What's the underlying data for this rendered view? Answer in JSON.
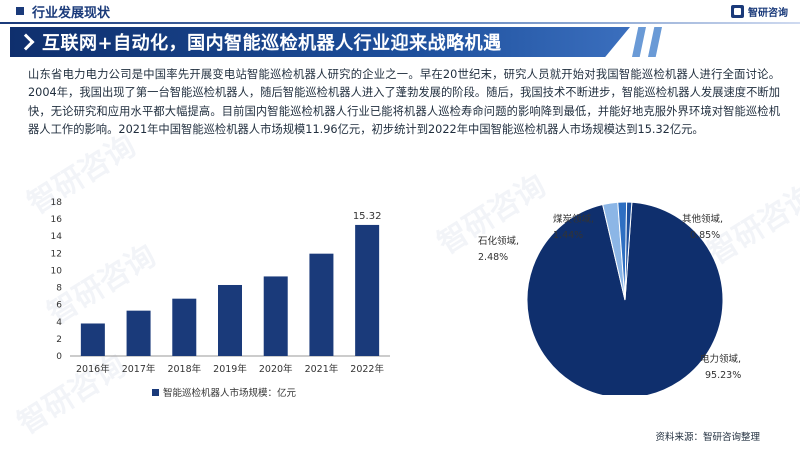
{
  "header": {
    "section_title": "行业发展现状",
    "brand_name": "智研咨询"
  },
  "banner": {
    "title": "互联网+自动化，国内智能巡检机器人行业迎来战略机遇"
  },
  "body_text": "山东省电力电力公司是中国率先开展变电站智能巡检机器人研究的企业之一。早在20世纪末，研究人员就开始对我国智能巡检机器人进行全面讨论。2004年，我国出现了第一台智能巡检机器人，随后智能巡检机器人进入了蓬勃发展的阶段。随后，我国技术不断进步，智能巡检机器人发展速度不断加快，无论研究和应用水平都大幅提高。目前国内智能巡检机器人行业已能将机器人巡检寿命问题的影响降到最低，并能好地克服外界环境对智能巡检机器人工作的影响。2021年中国智能巡检机器人市场规模11.96亿元，初步统计到2022年中国智能巡检机器人市场规模达到15.32亿元。",
  "watermark_text": "智研咨询",
  "source": "资料来源：智研咨询整理",
  "colors": {
    "primary": "#1a3a7a",
    "bar": "#1a3a7a",
    "pie_main": "#0f2f6d",
    "pie_2": "#2e6fc2",
    "pie_3": "#8cb6e6",
    "pie_4": "#1d4f9c"
  },
  "chart_data": [
    {
      "type": "bar",
      "categories": [
        "2016年",
        "2017年",
        "2018年",
        "2019年",
        "2020年",
        "2021年",
        "2022年"
      ],
      "values": [
        3.8,
        5.3,
        6.7,
        8.3,
        9.3,
        11.96,
        15.32
      ],
      "value_labels": [
        "",
        "",
        "",
        "",
        "",
        "",
        "15.32"
      ],
      "yticks": [
        "0",
        "2",
        "4",
        "6",
        "8",
        "10",
        "12",
        "14",
        "16",
        "18"
      ],
      "ylim": [
        0,
        18
      ],
      "legend": "智能巡检机器人市场规模：亿元",
      "legend_position": "bottom"
    },
    {
      "type": "pie",
      "slices": [
        {
          "name": "电力领域,",
          "value": 95.23,
          "label": "95.23%"
        },
        {
          "name": "石化领域,",
          "value": 2.48,
          "label": "2.48%"
        },
        {
          "name": "煤炭领域,",
          "value": 1.44,
          "label": "1.44%"
        },
        {
          "name": "其他领域,",
          "value": 0.85,
          "label": "0.85%"
        }
      ]
    }
  ]
}
